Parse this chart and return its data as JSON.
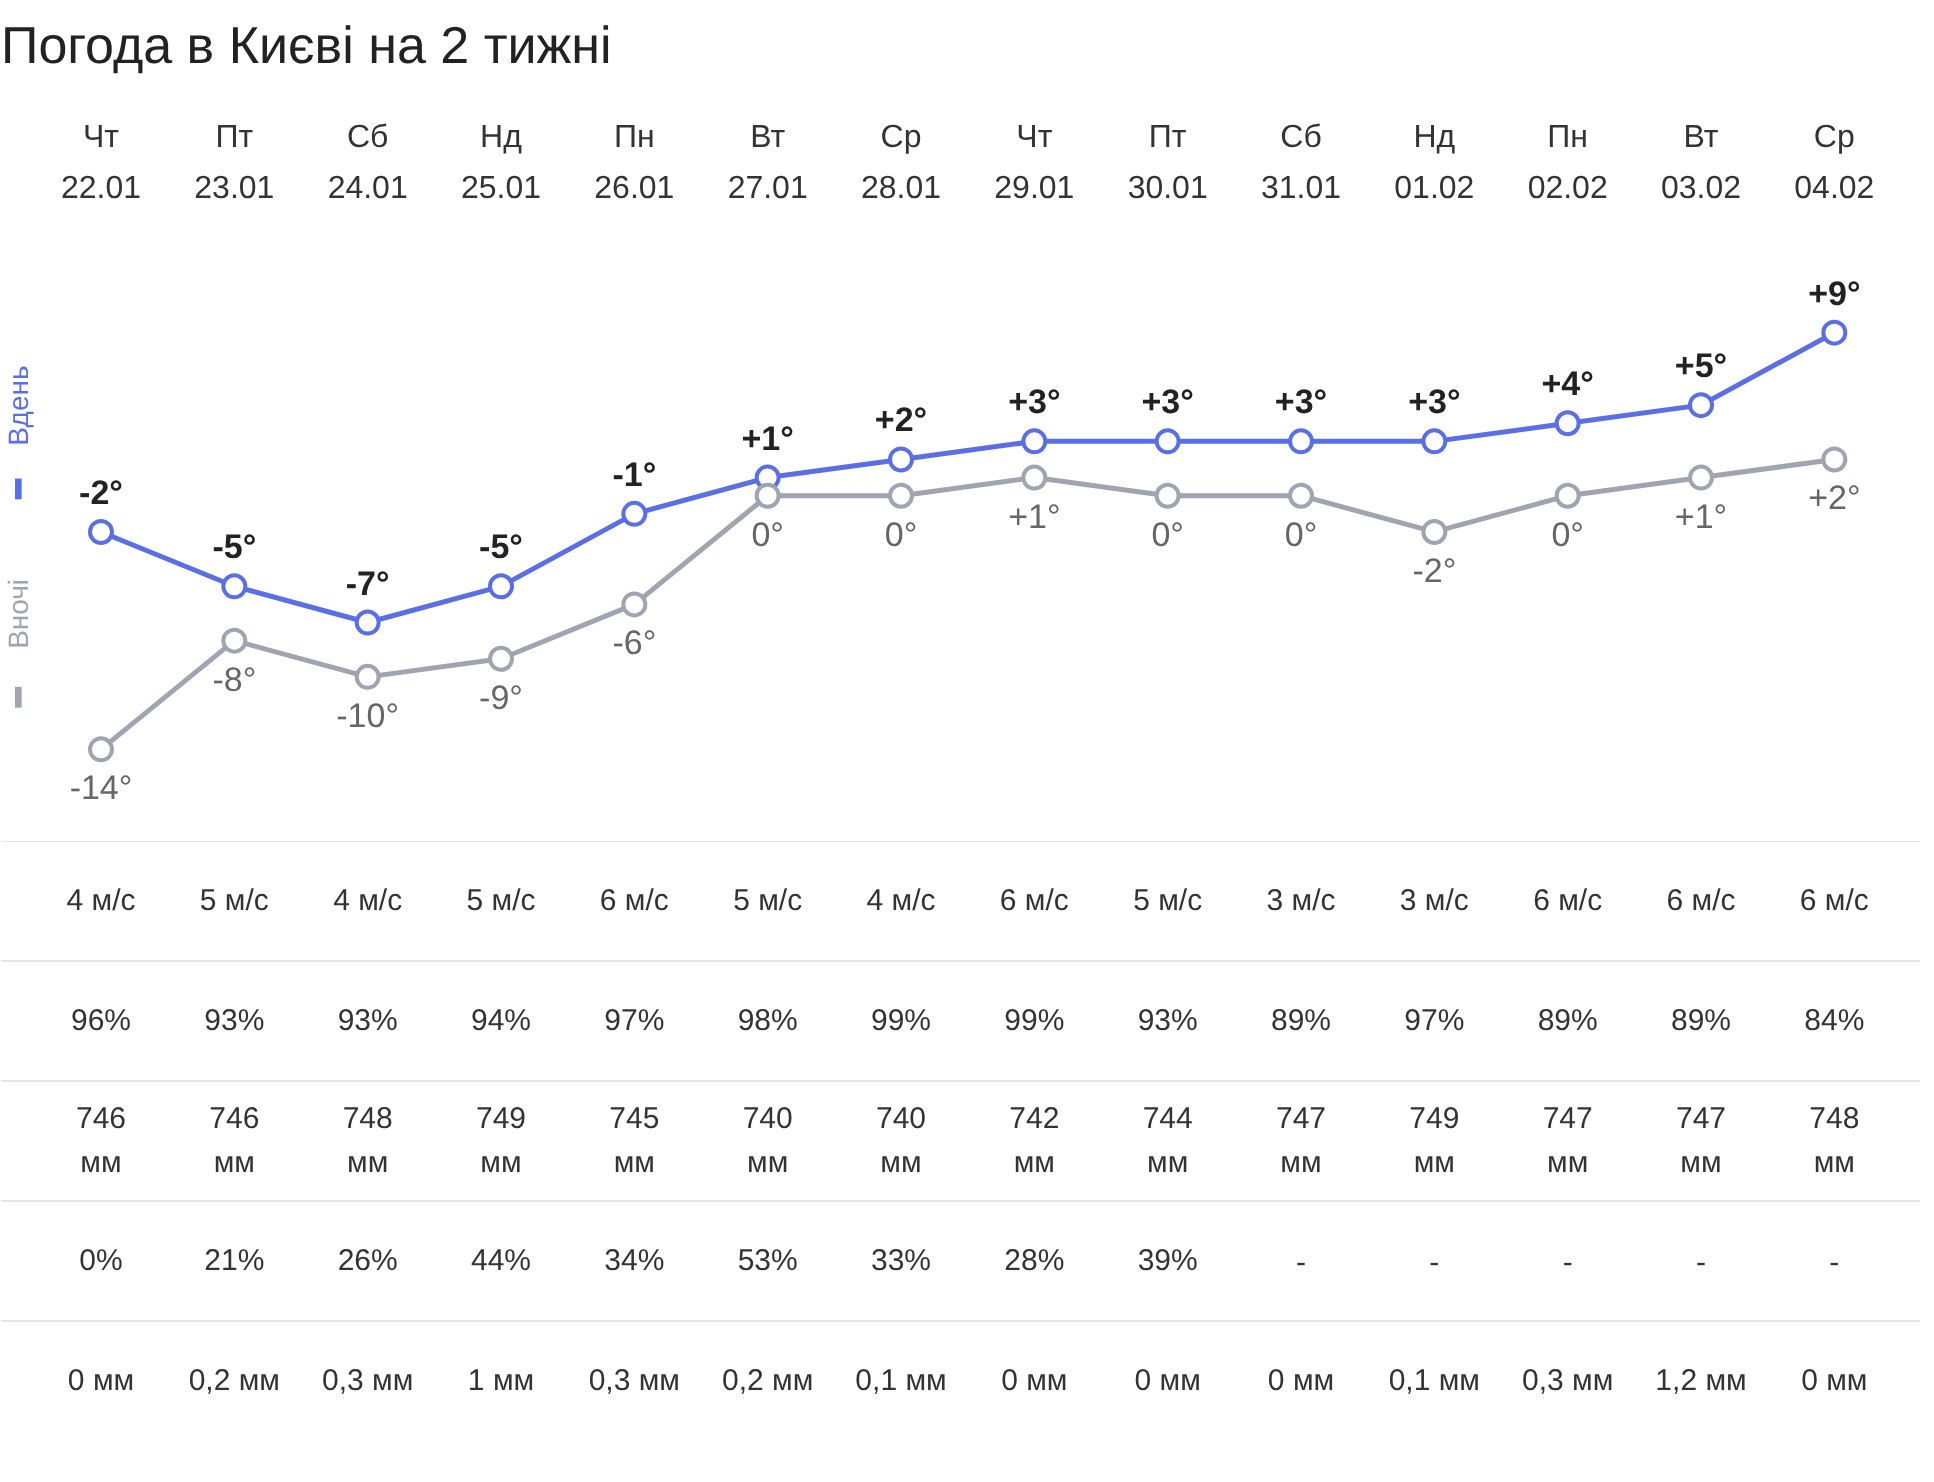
{
  "chart_data": {
    "type": "line",
    "title": "Погода в Києві на 2 тижні",
    "categories": [
      "Чт\n22.01",
      "Пт\n23.01",
      "Сб\n24.01",
      "Нд\n25.01",
      "Пн\n26.01",
      "Вт\n27.01",
      "Ср\n28.01",
      "Чт\n29.01",
      "Пт\n30.01",
      "Сб\n31.01",
      "Нд\n01.02",
      "Пн\n02.02",
      "Вт\n03.02",
      "Ср\n04.02"
    ],
    "series": [
      {
        "name": "Вдень",
        "color": "#5a6ee6",
        "values": [
          -2,
          -5,
          -7,
          -5,
          -1,
          1,
          2,
          3,
          3,
          3,
          3,
          4,
          5,
          9
        ],
        "value_labels": [
          "-2°",
          "-5°",
          "-7°",
          "-5°",
          "-1°",
          "+1°",
          "+2°",
          "+3°",
          "+3°",
          "+3°",
          "+3°",
          "+4°",
          "+5°",
          "+9°"
        ]
      },
      {
        "name": "Вночі",
        "color": "#a0a4b0",
        "values": [
          -14,
          -8,
          -10,
          -9,
          -6,
          0,
          0,
          1,
          0,
          0,
          -2,
          0,
          1,
          2
        ],
        "value_labels": [
          "-14°",
          "-8°",
          "-10°",
          "-9°",
          "-6°",
          "0°",
          "0°",
          "+1°",
          "0°",
          "0°",
          "-2°",
          "0°",
          "+1°",
          "+2°"
        ]
      }
    ],
    "legend": "left",
    "marker": "circle",
    "annotations": [
      "4 м/с",
      "5 м/с",
      "4 м/с",
      "5 м/с",
      "6 м/с",
      "5 м/с",
      "4 м/с",
      "6 м/с",
      "5 м/с",
      "3 м/с",
      "3 м/с",
      "6 м/с",
      "6 м/с",
      "6 м/с",
      "96%",
      "93%",
      "93%",
      "94%",
      "97%",
      "98%",
      "99%",
      "99%",
      "93%",
      "89%",
      "97%",
      "89%",
      "89%",
      "84%",
      "746\nмм",
      "746\nмм",
      "748\nмм",
      "749\nмм",
      "745\nмм",
      "740\nмм",
      "740\nмм",
      "742\nмм",
      "744\nмм",
      "747\nмм",
      "749\nмм",
      "747\nмм",
      "747\nмм",
      "748\nмм",
      "0%",
      "21%",
      "26%",
      "44%",
      "34%",
      "53%",
      "33%",
      "28%",
      "39%",
      "-",
      "-",
      "-",
      "-",
      "-",
      "0 мм",
      "0,2 мм",
      "0,3 мм",
      "1 мм",
      "0,3 мм",
      "0,2 мм",
      "0,1 мм",
      "0 мм",
      "0 мм",
      "0 мм",
      "0,1 мм",
      "0,3 мм",
      "1,2 мм",
      "0 мм"
    ]
  }
}
